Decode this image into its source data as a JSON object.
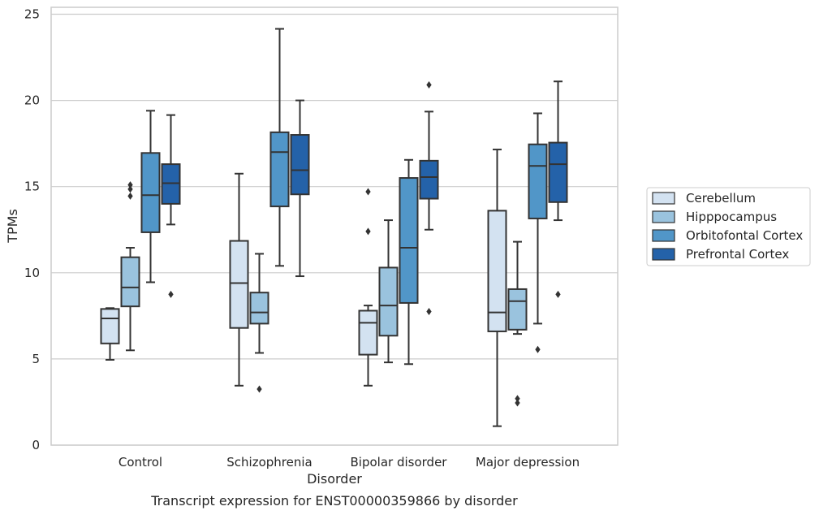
{
  "chart_data": {
    "type": "box",
    "caption": "Transcript expression for ENST00000359866 by disorder",
    "xlabel": "Disorder",
    "ylabel": "TPMs",
    "ylim": [
      0,
      25.4
    ],
    "yticks": [
      0,
      5,
      10,
      15,
      20,
      25
    ],
    "grid": true,
    "legend_position": "right",
    "categories": [
      "Control",
      "Schizophrenia",
      "Bipolar disorder",
      "Major depression"
    ],
    "series": [
      {
        "name": "Cerebellum",
        "color": "#d3e2f1",
        "boxes": [
          {
            "whislo": 4.95,
            "q1": 5.9,
            "med": 7.35,
            "q3": 7.9,
            "whishi": 7.95,
            "fliers": []
          },
          {
            "whislo": 3.45,
            "q1": 6.8,
            "med": 9.4,
            "q3": 11.85,
            "whishi": 15.75,
            "fliers": []
          },
          {
            "whislo": 3.45,
            "q1": 5.25,
            "med": 7.1,
            "q3": 7.8,
            "whishi": 8.1,
            "fliers": [
              12.4,
              14.7
            ]
          },
          {
            "whislo": 1.1,
            "q1": 6.6,
            "med": 7.7,
            "q3": 13.6,
            "whishi": 17.15,
            "fliers": []
          }
        ]
      },
      {
        "name": "Hipppocampus",
        "color": "#9ac3de",
        "boxes": [
          {
            "whislo": 5.5,
            "q1": 8.05,
            "med": 9.15,
            "q3": 10.9,
            "whishi": 11.45,
            "fliers": [
              14.45,
              14.85,
              15.1
            ]
          },
          {
            "whislo": 5.35,
            "q1": 7.05,
            "med": 7.7,
            "q3": 8.85,
            "whishi": 11.1,
            "fliers": [
              3.25
            ]
          },
          {
            "whislo": 4.8,
            "q1": 6.35,
            "med": 8.1,
            "q3": 10.3,
            "whishi": 13.05,
            "fliers": []
          },
          {
            "whislo": 6.45,
            "q1": 6.7,
            "med": 8.35,
            "q3": 9.05,
            "whishi": 11.8,
            "fliers": [
              2.45,
              2.7
            ]
          }
        ]
      },
      {
        "name": "Orbitofontal Cortex",
        "color": "#5196c8",
        "boxes": [
          {
            "whislo": 9.45,
            "q1": 12.35,
            "med": 14.5,
            "q3": 16.95,
            "whishi": 19.4,
            "fliers": []
          },
          {
            "whislo": 10.4,
            "q1": 13.85,
            "med": 17.0,
            "q3": 18.15,
            "whishi": 24.15,
            "fliers": []
          },
          {
            "whislo": 4.7,
            "q1": 8.25,
            "med": 11.45,
            "q3": 15.5,
            "whishi": 16.55,
            "fliers": []
          },
          {
            "whislo": 7.05,
            "q1": 13.15,
            "med": 16.2,
            "q3": 17.45,
            "whishi": 19.25,
            "fliers": [
              5.55
            ]
          }
        ]
      },
      {
        "name": "Prefrontal Cortex",
        "color": "#2462a9",
        "boxes": [
          {
            "whislo": 12.8,
            "q1": 14.0,
            "med": 15.2,
            "q3": 16.3,
            "whishi": 19.15,
            "fliers": [
              8.75
            ]
          },
          {
            "whislo": 9.8,
            "q1": 14.55,
            "med": 15.95,
            "q3": 18.0,
            "whishi": 20.0,
            "fliers": []
          },
          {
            "whislo": 12.5,
            "q1": 14.3,
            "med": 15.55,
            "q3": 16.5,
            "whishi": 19.35,
            "fliers": [
              7.75,
              20.9
            ]
          },
          {
            "whislo": 13.05,
            "q1": 14.1,
            "med": 16.3,
            "q3": 17.55,
            "whishi": 21.1,
            "fliers": [
              8.75
            ]
          }
        ]
      }
    ]
  }
}
